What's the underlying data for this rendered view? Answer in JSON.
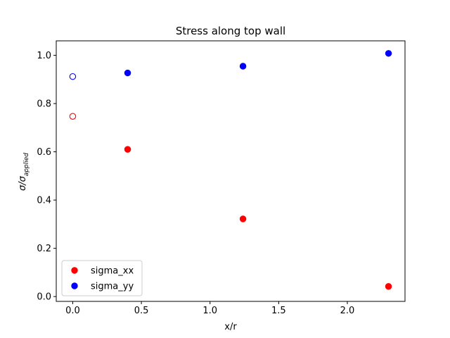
{
  "chart_data": {
    "type": "scatter",
    "title": "Stress along top wall",
    "xlabel": "x/r",
    "ylabel_main": "σ/σ",
    "ylabel_sub": "applied",
    "xlim": [
      -0.12,
      2.42
    ],
    "ylim": [
      -0.02,
      1.06
    ],
    "xticks": [
      0.0,
      0.5,
      1.0,
      1.5,
      2.0
    ],
    "xtick_labels": [
      "0.0",
      "0.5",
      "1.0",
      "1.5",
      "2.0"
    ],
    "yticks": [
      0.0,
      0.2,
      0.4,
      0.6,
      0.8,
      1.0
    ],
    "ytick_labels": [
      "0.0",
      "0.2",
      "0.4",
      "0.6",
      "0.8",
      "1.0"
    ],
    "grid": false,
    "legend_position": "lower-left",
    "series": [
      {
        "name": "sigma_xx",
        "color": "#ff0000",
        "points": [
          {
            "x": 0.0,
            "y": 0.747,
            "filled": false
          },
          {
            "x": 0.4,
            "y": 0.61,
            "filled": true
          },
          {
            "x": 1.24,
            "y": 0.322,
            "filled": true
          },
          {
            "x": 2.3,
            "y": 0.042,
            "filled": true
          }
        ]
      },
      {
        "name": "sigma_yy",
        "color": "#0000ff",
        "points": [
          {
            "x": 0.0,
            "y": 0.912,
            "filled": false
          },
          {
            "x": 0.4,
            "y": 0.927,
            "filled": true
          },
          {
            "x": 1.24,
            "y": 0.955,
            "filled": true
          },
          {
            "x": 2.3,
            "y": 1.008,
            "filled": true
          }
        ]
      }
    ]
  }
}
